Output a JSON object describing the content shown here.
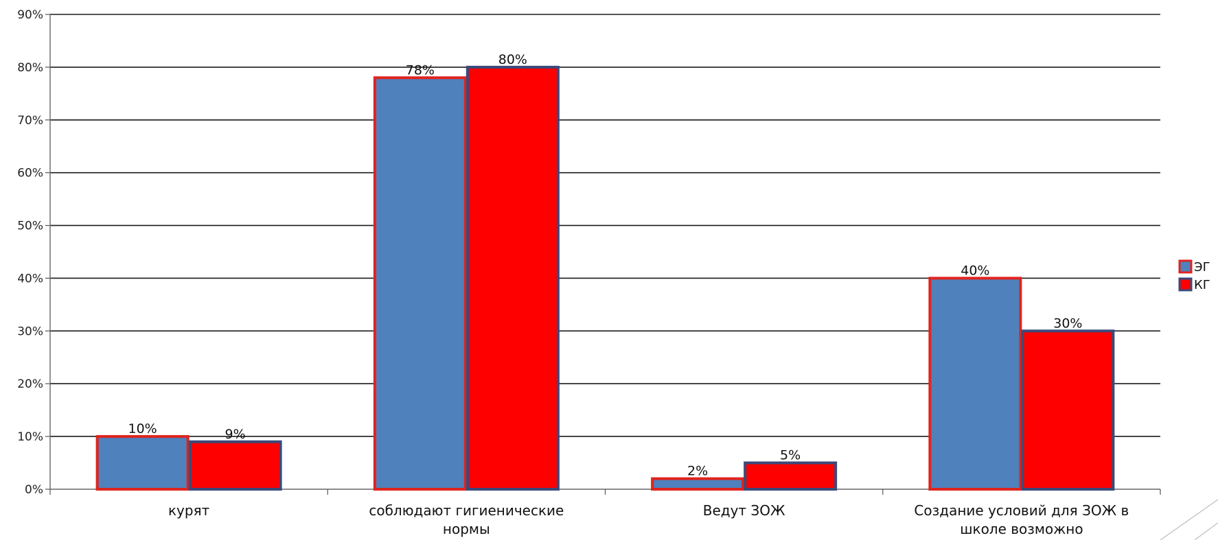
{
  "chart_data": {
    "type": "bar",
    "title": "",
    "xlabel": "",
    "ylabel": "",
    "ylim": [
      0,
      90
    ],
    "yticks": [
      0,
      10,
      20,
      30,
      40,
      50,
      60,
      70,
      80,
      90
    ],
    "ytick_labels": [
      "0%",
      "10%",
      "20%",
      "30%",
      "40%",
      "50%",
      "60%",
      "70%",
      "80%",
      "90%"
    ],
    "grid": true,
    "legend_position": "right",
    "categories": [
      [
        "курят"
      ],
      [
        "соблюдают гигиенические",
        "нормы"
      ],
      [
        "Ведут ЗОЖ"
      ],
      [
        "Создание условий для ЗОЖ в",
        "школе возможно"
      ]
    ],
    "series": [
      {
        "name": "ЭГ",
        "values": [
          10,
          78,
          2,
          40
        ],
        "labels": [
          "10%",
          "78%",
          "2%",
          "40%"
        ],
        "fill": "#4f81bd",
        "stroke": "#e0241e"
      },
      {
        "name": "КГ",
        "values": [
          9,
          80,
          5,
          30
        ],
        "labels": [
          "9%",
          "80%",
          "5%",
          "30%"
        ],
        "fill": "#ff0000",
        "stroke": "#3b4a7a"
      }
    ]
  }
}
